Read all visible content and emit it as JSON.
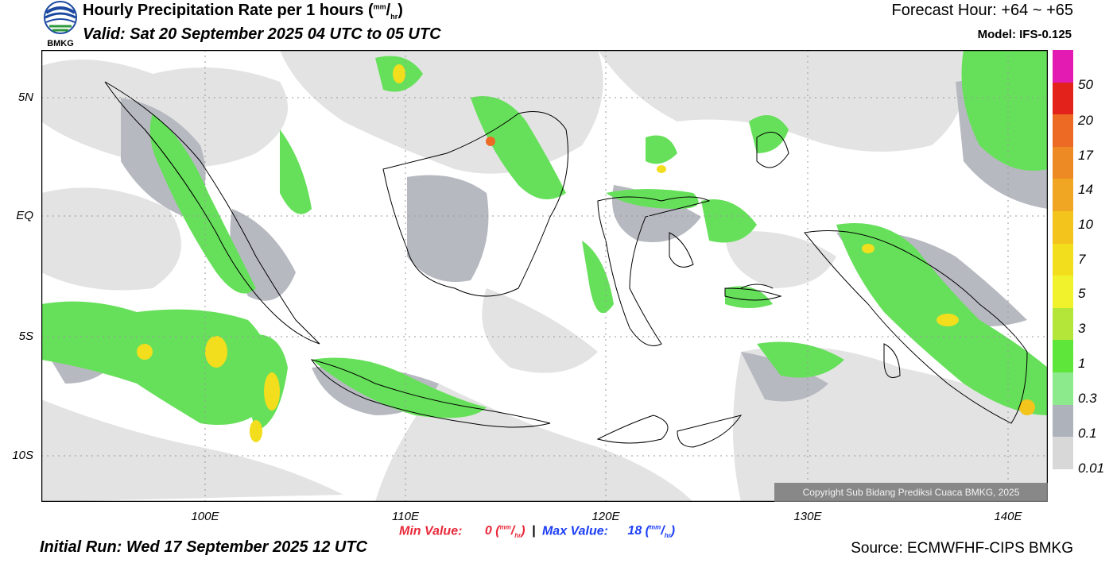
{
  "header": {
    "title": "Hourly Precipitation Rate per 1 hours",
    "title_unit_num": "mm",
    "title_unit_den": "hr",
    "valid": "Valid: Sat 20 September 2025 04 UTC to 05 UTC",
    "forecast_hour": "Forecast Hour: +64 ~ +65",
    "model": "Model: IFS-0.125",
    "logo_text": "BMKG"
  },
  "footer": {
    "initial_run": "Initial Run: Wed 17 September 2025 12 UTC",
    "source": "Source: ECMWFHF-CIPS BMKG",
    "copyright": "Copyright Sub Bidang Prediksi Cuaca BMKG, 2025",
    "min_label": "Min Value:",
    "min_value": "0",
    "max_label": "Max Value:",
    "max_value": "18",
    "separator": "|",
    "unit_num": "mm",
    "unit_den": "hr"
  },
  "axes": {
    "lat_labels": [
      "5N",
      "EQ",
      "5S",
      "10S"
    ],
    "lon_labels": [
      "100E",
      "110E",
      "120E",
      "130E",
      "140E"
    ]
  },
  "colorbar": {
    "labels": [
      "50",
      "20",
      "17",
      "14",
      "10",
      "7",
      "5",
      "3",
      "1",
      "0.3",
      "0.1",
      "0.01"
    ],
    "colors": [
      "#e31bb3",
      "#e3231b",
      "#ec6a24",
      "#ee8a24",
      "#f0a623",
      "#f2c41c",
      "#f2de1c",
      "#f2f22c",
      "#b4e63a",
      "#5ee63a",
      "#8cea8c",
      "#aeb3bb",
      "#d8d8d8"
    ]
  },
  "map": {
    "land_color": "#ffffff",
    "light_rain_color": "#e3e3e3",
    "grey_rain_color": "#b6b9c0",
    "green_rain_color": "#66e05a"
  }
}
